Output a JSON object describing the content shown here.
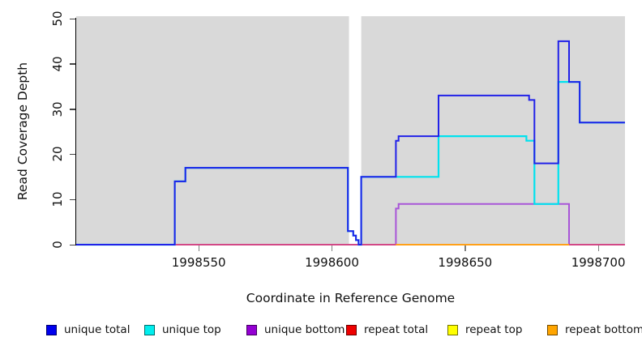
{
  "chart_data": {
    "type": "line",
    "subtype": "step-coverage",
    "title": "",
    "xlabel": "Coordinate in Reference Genome",
    "ylabel": "Read Coverage Depth",
    "xlim": [
      1998504,
      1998710
    ],
    "ylim": [
      0,
      50
    ],
    "x_ticks": [
      "1998550",
      "1998600",
      "1998650",
      "1998700"
    ],
    "x_tick_values": [
      1998550,
      1998600,
      1998650,
      1998700
    ],
    "y_ticks": [
      "0",
      "10",
      "20",
      "30",
      "40",
      "50"
    ],
    "y_tick_values": [
      0,
      10,
      20,
      30,
      40,
      50
    ],
    "grid": false,
    "plot_bg": "#D9D9D9",
    "masked_region": {
      "from": 1998606.4,
      "to": 1998611.0
    },
    "legend_position": "bottom",
    "series": [
      {
        "name": "repeat top",
        "color": "#FFFF00",
        "width": 2,
        "start": 1998504,
        "end": 1998710,
        "steps": [
          [
            1998504,
            0
          ]
        ]
      },
      {
        "name": "unique bottom",
        "color": "#A855D8",
        "width": 2,
        "start": 1998504,
        "end": 1998710,
        "steps": [
          [
            1998504,
            0
          ],
          [
            1998624,
            8
          ],
          [
            1998625,
            9
          ],
          [
            1998689,
            0
          ]
        ]
      },
      {
        "name": "repeat total",
        "color": "#E0446A",
        "width": 1.6,
        "start": 1998504,
        "end": 1998710,
        "steps": [
          [
            1998504,
            0
          ]
        ]
      },
      {
        "name": "repeat bottom",
        "color": "#FFA018",
        "width": 2,
        "start": 1998624,
        "end": 1998689,
        "steps": [
          [
            1998624,
            0
          ]
        ]
      },
      {
        "name": "unique top",
        "color": "#00E2EE",
        "width": 2.2,
        "start": 1998504,
        "end": 1998710,
        "steps": [
          [
            1998504,
            0
          ],
          [
            1998541,
            14
          ],
          [
            1998545,
            17
          ],
          [
            1998606,
            3
          ],
          [
            1998608,
            2
          ],
          [
            1998609,
            1
          ],
          [
            1998610,
            0
          ],
          [
            1998611,
            15
          ],
          [
            1998640,
            24
          ],
          [
            1998673,
            23
          ],
          [
            1998676,
            9
          ],
          [
            1998685,
            36
          ],
          [
            1998693,
            27
          ]
        ]
      },
      {
        "name": "unique total",
        "color": "#2121E8",
        "width": 2,
        "start": 1998504,
        "end": 1998710,
        "steps": [
          [
            1998504,
            0
          ],
          [
            1998541,
            14
          ],
          [
            1998545,
            17
          ],
          [
            1998606,
            3
          ],
          [
            1998608,
            2
          ],
          [
            1998609,
            1
          ],
          [
            1998610,
            0
          ],
          [
            1998611,
            15
          ],
          [
            1998624,
            23
          ],
          [
            1998625,
            24
          ],
          [
            1998640,
            33
          ],
          [
            1998674,
            32
          ],
          [
            1998676,
            18
          ],
          [
            1998685,
            45
          ],
          [
            1998689,
            36
          ],
          [
            1998693,
            27
          ]
        ]
      }
    ]
  },
  "legend": {
    "items": [
      {
        "label": "unique total",
        "color": "#0000EE"
      },
      {
        "label": "unique top",
        "color": "#00EEEE"
      },
      {
        "label": "unique bottom",
        "color": "#9400D3"
      },
      {
        "label": "repeat total",
        "color": "#EE0000"
      },
      {
        "label": "repeat top",
        "color": "#FFFF00"
      },
      {
        "label": "repeat bottom",
        "color": "#FFA500"
      }
    ]
  }
}
